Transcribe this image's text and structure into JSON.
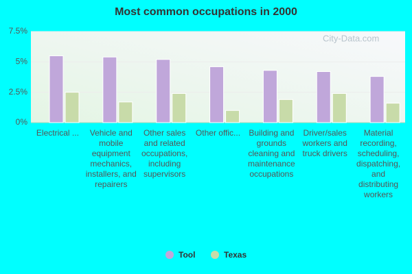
{
  "chart_data": {
    "type": "bar",
    "title": "Most common occupations in 2000",
    "watermark": "City-Data.com",
    "categories": [
      "Electrical ...",
      "Vehicle and mobile equipment mechanics, installers, and repairers",
      "Other sales and related occupations, including supervisors",
      "Other offic...",
      "Building and grounds cleaning and maintenance occupations",
      "Driver/sales workers and truck drivers",
      "Material recording, scheduling, dispatching, and distributing workers"
    ],
    "series": [
      {
        "name": "Tool",
        "color": "#c0a7da",
        "values": [
          5.5,
          5.4,
          5.2,
          4.6,
          4.3,
          4.2,
          3.8
        ]
      },
      {
        "name": "Texas",
        "color": "#c8dba9",
        "values": [
          2.5,
          1.7,
          2.4,
          1.0,
          1.9,
          2.4,
          1.6
        ]
      }
    ],
    "ylim": [
      0,
      7.5
    ],
    "yticks": [
      {
        "value": 0,
        "label": "0%"
      },
      {
        "value": 2.5,
        "label": "2.5%"
      },
      {
        "value": 5,
        "label": "5%"
      },
      {
        "value": 7.5,
        "label": "7.5%"
      }
    ],
    "grid": true
  }
}
